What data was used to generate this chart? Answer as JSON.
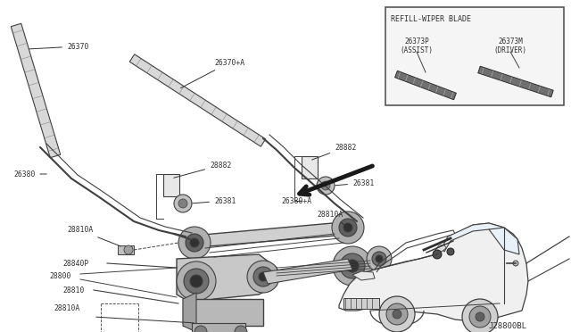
{
  "bg_color": "#ffffff",
  "line_color": "#404040",
  "text_color": "#303030",
  "label_fs": 5.8,
  "diagram_code": "J28800BL",
  "refill_title": "REFILL-WIPER BLADE",
  "refill_label1": "26373P\n(ASSIST)",
  "refill_label2": "26373M\n(DRIVER)"
}
